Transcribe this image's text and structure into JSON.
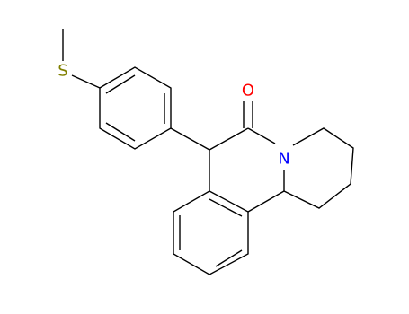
{
  "atoms": {
    "sulfur": "S",
    "oxygen": "O",
    "nitrogen": "N"
  }
}
